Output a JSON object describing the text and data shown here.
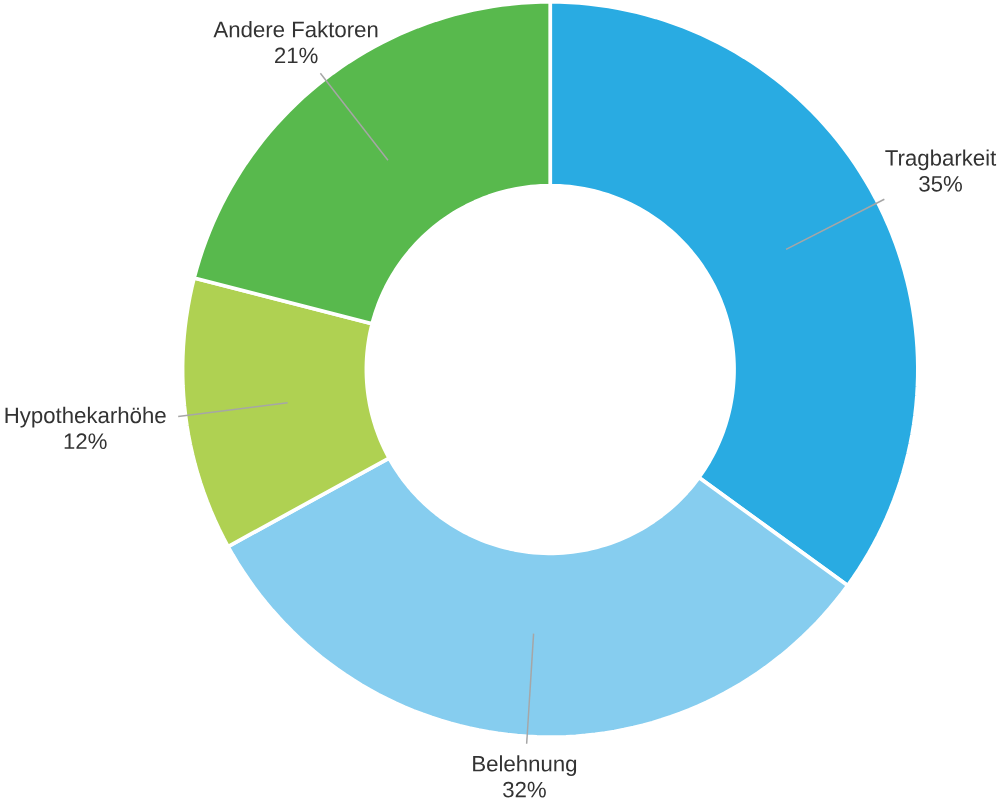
{
  "chart_data": {
    "type": "donut",
    "categories": [
      "Tragbarkeit",
      "Belehnung",
      "Hypothekarhöhe",
      "Andere Faktoren"
    ],
    "values": [
      35,
      32,
      12,
      21
    ],
    "value_labels": [
      "35%",
      "32%",
      "12%",
      "21%"
    ],
    "colors": [
      "#29abe2",
      "#86cdef",
      "#afd152",
      "#58b94d"
    ]
  }
}
